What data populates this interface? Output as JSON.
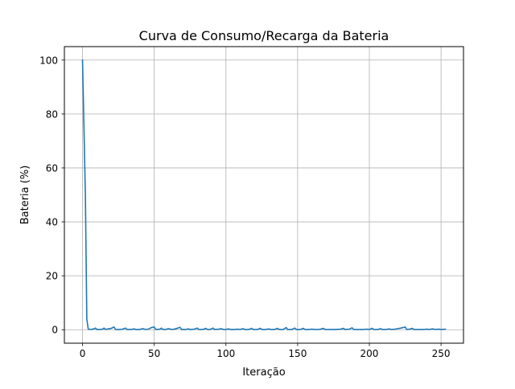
{
  "chart_data": {
    "type": "line",
    "title": "Curva de Consumo/Recarga da Bateria",
    "xlabel": "Iteração",
    "ylabel": "Bateria (%)",
    "xlim": [
      -12.65,
      265.65
    ],
    "ylim": [
      -5,
      105
    ],
    "xticks": [
      0,
      50,
      100,
      150,
      200,
      250
    ],
    "yticks": [
      0,
      20,
      40,
      60,
      80,
      100
    ],
    "grid": true,
    "legend": "none",
    "series": [
      {
        "color": "#1f77b4",
        "points": [
          [
            0,
            100
          ],
          [
            2,
            50
          ],
          [
            3,
            4
          ],
          [
            4,
            0.2
          ],
          [
            6,
            0.1
          ],
          [
            8,
            0.3
          ],
          [
            9,
            0.6
          ],
          [
            10,
            0.1
          ],
          [
            12,
            0.1
          ],
          [
            14,
            0.2
          ],
          [
            15,
            0.6
          ],
          [
            16,
            0.1
          ],
          [
            18,
            0.3
          ],
          [
            20,
            0.5
          ],
          [
            22,
            1.0
          ],
          [
            23,
            0.1
          ],
          [
            26,
            0.1
          ],
          [
            28,
            0.2
          ],
          [
            30,
            0.6
          ],
          [
            31,
            0.1
          ],
          [
            34,
            0.1
          ],
          [
            36,
            0.3
          ],
          [
            37,
            0.1
          ],
          [
            40,
            0.1
          ],
          [
            42,
            0.4
          ],
          [
            44,
            0.1
          ],
          [
            46,
            0.2
          ],
          [
            48,
            0.8
          ],
          [
            50,
            1.0
          ],
          [
            51,
            0.1
          ],
          [
            54,
            0.2
          ],
          [
            55,
            0.6
          ],
          [
            56,
            0.1
          ],
          [
            58,
            0.1
          ],
          [
            60,
            0.4
          ],
          [
            62,
            0.1
          ],
          [
            64,
            0.2
          ],
          [
            66,
            0.5
          ],
          [
            68,
            0.9
          ],
          [
            69,
            0.1
          ],
          [
            72,
            0.1
          ],
          [
            74,
            0.3
          ],
          [
            75,
            0.1
          ],
          [
            78,
            0.2
          ],
          [
            80,
            0.6
          ],
          [
            81,
            0.1
          ],
          [
            84,
            0.1
          ],
          [
            86,
            0.5
          ],
          [
            87,
            0.1
          ],
          [
            89,
            0.1
          ],
          [
            91,
            0.6
          ],
          [
            92,
            0.1
          ],
          [
            95,
            0.2
          ],
          [
            97,
            0.4
          ],
          [
            98,
            0.1
          ],
          [
            100,
            0.1
          ],
          [
            102,
            0.3
          ],
          [
            103,
            0.1
          ],
          [
            106,
            0.1
          ],
          [
            108,
            0.2
          ],
          [
            110,
            0.1
          ],
          [
            112,
            0.4
          ],
          [
            113,
            0.1
          ],
          [
            116,
            0.1
          ],
          [
            118,
            0.5
          ],
          [
            119,
            0.1
          ],
          [
            122,
            0.1
          ],
          [
            124,
            0.5
          ],
          [
            125,
            0.1
          ],
          [
            128,
            0.1
          ],
          [
            130,
            0.3
          ],
          [
            131,
            0.1
          ],
          [
            134,
            0.1
          ],
          [
            136,
            0.5
          ],
          [
            137,
            0.1
          ],
          [
            140,
            0.1
          ],
          [
            142,
            0.8
          ],
          [
            143,
            0.1
          ],
          [
            146,
            0.1
          ],
          [
            148,
            0.6
          ],
          [
            149,
            0.1
          ],
          [
            152,
            0.1
          ],
          [
            154,
            0.5
          ],
          [
            155,
            0.1
          ],
          [
            158,
            0.1
          ],
          [
            160,
            0.2
          ],
          [
            162,
            0.1
          ],
          [
            164,
            0.1
          ],
          [
            166,
            0.2
          ],
          [
            168,
            0.5
          ],
          [
            169,
            0.1
          ],
          [
            172,
            0.1
          ],
          [
            176,
            0.1
          ],
          [
            180,
            0.2
          ],
          [
            182,
            0.5
          ],
          [
            183,
            0.1
          ],
          [
            186,
            0.2
          ],
          [
            188,
            0.7
          ],
          [
            189,
            0.1
          ],
          [
            192,
            0.1
          ],
          [
            196,
            0.1
          ],
          [
            198,
            0.2
          ],
          [
            200,
            0.1
          ],
          [
            202,
            0.5
          ],
          [
            203,
            0.1
          ],
          [
            206,
            0.1
          ],
          [
            208,
            0.4
          ],
          [
            209,
            0.1
          ],
          [
            212,
            0.1
          ],
          [
            214,
            0.3
          ],
          [
            215,
            0.1
          ],
          [
            218,
            0.2
          ],
          [
            220,
            0.4
          ],
          [
            222,
            0.6
          ],
          [
            225,
            1.0
          ],
          [
            226,
            0.1
          ],
          [
            228,
            0.2
          ],
          [
            230,
            0.5
          ],
          [
            231,
            0.1
          ],
          [
            234,
            0.1
          ],
          [
            238,
            0.1
          ],
          [
            240,
            0.2
          ],
          [
            242,
            0.1
          ],
          [
            244,
            0.3
          ],
          [
            246,
            0.1
          ],
          [
            248,
            0.2
          ],
          [
            250,
            0.1
          ],
          [
            253,
            0.2
          ]
        ]
      }
    ]
  }
}
